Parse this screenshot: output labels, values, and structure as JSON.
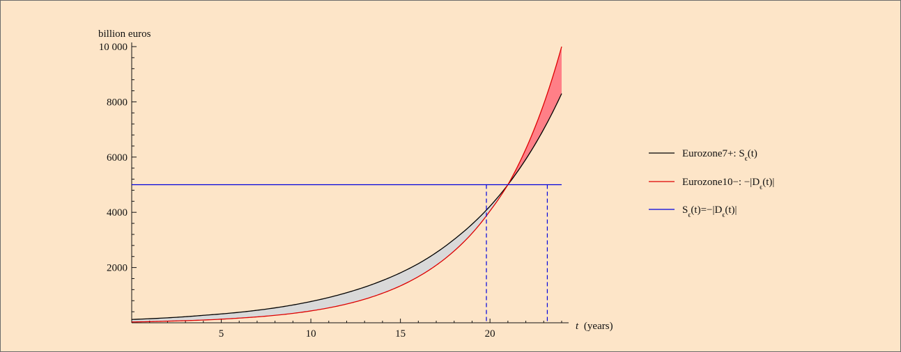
{
  "chart_data": {
    "type": "line",
    "ylabel": "billion euros",
    "xlabel_var": "t",
    "xlabel_unit": "(years)",
    "xlim": [
      0,
      24
    ],
    "ylim": [
      0,
      10000
    ],
    "x_ticks": [
      5,
      10,
      15,
      20
    ],
    "y_ticks": [
      2000,
      4000,
      6000,
      8000,
      10000
    ],
    "y_tick_labels": [
      "2000",
      "4000",
      "6000",
      "8000",
      "10 000"
    ],
    "grid": false,
    "legend_position": "right",
    "series": [
      {
        "name_base": "Eurozone7+: S",
        "name_sub": "ϵ",
        "name_tail": "(t)",
        "color": "#000000",
        "x": [
          0,
          2,
          4,
          6,
          8,
          10,
          12,
          14,
          16,
          18,
          19,
          20,
          21,
          22,
          23,
          24
        ],
        "values": [
          120,
          180,
          270,
          380,
          540,
          770,
          1090,
          1530,
          2140,
          3020,
          3570,
          4220,
          5000,
          5920,
          7010,
          8300
        ]
      },
      {
        "name_base": "Eurozone10−: −|D",
        "name_sub": "ϵ",
        "name_tail": "(t)|",
        "color": "#dd0000",
        "x": [
          0,
          2,
          4,
          6,
          8,
          10,
          12,
          14,
          16,
          18,
          19,
          20,
          21,
          22,
          23,
          24
        ],
        "values": [
          30,
          60,
          100,
          170,
          270,
          430,
          680,
          1070,
          1670,
          2600,
          3240,
          4050,
          5000,
          6290,
          7920,
          10000
        ]
      },
      {
        "name_base": "S",
        "name_sub": "ϵ",
        "name_tail": "(t)=−|D",
        "name_sub2": "ϵ",
        "name_tail2": "(t)|",
        "color": "#0000dd",
        "x": [
          0,
          24
        ],
        "values": [
          5000,
          5000
        ]
      }
    ],
    "dashed_verticals": [
      {
        "x": 19.8,
        "y": 5000,
        "color": "#0000dd"
      },
      {
        "x": 23.2,
        "y": 5000,
        "color": "#0000dd"
      }
    ],
    "fill_between": [
      {
        "between": [
          "Eurozone7+",
          "Eurozone10−"
        ],
        "x_range": [
          0,
          21
        ],
        "color": "#d9d9d9"
      },
      {
        "between": [
          "Eurozone10−",
          "Eurozone7+"
        ],
        "x_range": [
          21,
          24
        ],
        "color": "#ff7f87"
      }
    ]
  }
}
